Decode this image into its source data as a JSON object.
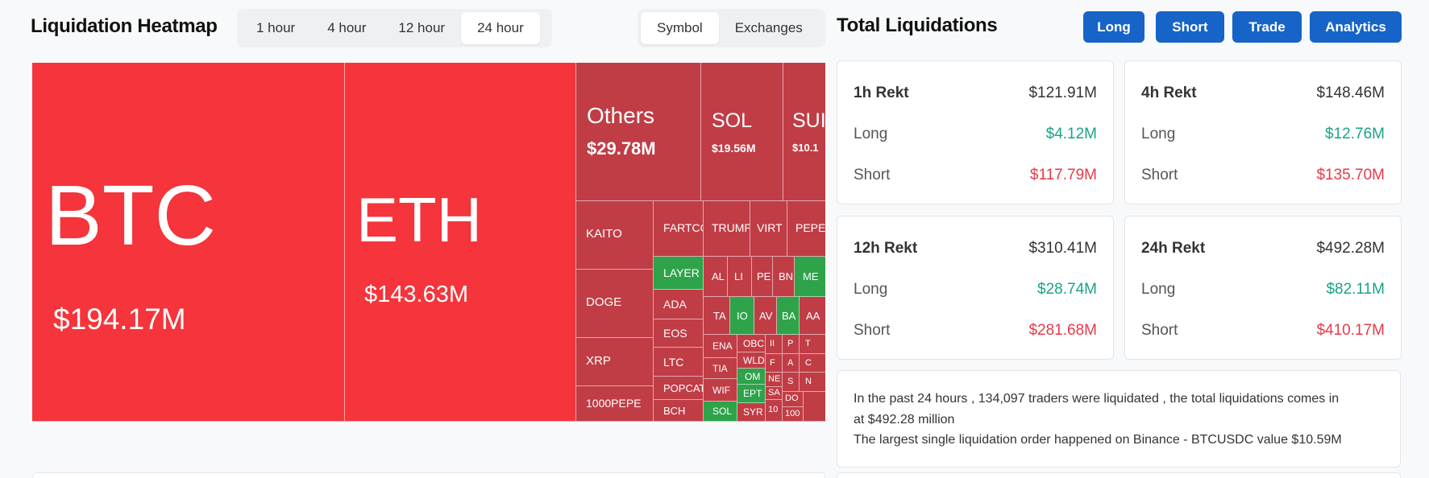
{
  "heatmap": {
    "title": "Liquidation Heatmap",
    "time_tabs": [
      "1 hour",
      "4 hour",
      "12 hour",
      "24 hour"
    ],
    "active_time": "24 hour",
    "view_tabs": [
      "Symbol",
      "Exchanges"
    ],
    "active_view": "Symbol",
    "cells": {
      "btc": {
        "symbol": "BTC",
        "value": "$194.17M"
      },
      "eth": {
        "symbol": "ETH",
        "value": "$143.63M"
      },
      "others": {
        "symbol": "Others",
        "value": "$29.78M"
      },
      "sol": {
        "symbol": "SOL",
        "value": "$19.56M"
      },
      "sui": {
        "symbol": "SUI",
        "value": "$10.1"
      },
      "kaito": "KAITO",
      "doge": "DOGE",
      "xrp": "XRP",
      "pepe1000": "1000PEPE",
      "fartco": "FARTCO",
      "trump": "TRUMP",
      "virt": "VIRT",
      "pepe": "PEPE",
      "layer": "LAYER",
      "ada": "ADA",
      "eos": "EOS",
      "ltc": "LTC",
      "popcat": "POPCAT",
      "bch": "BCH",
      "al": "AL",
      "li": "LI",
      "pe": "PE",
      "bn": "BN",
      "me": "ME",
      "ta": "TA",
      "io": "IO",
      "av": "AV",
      "ba": "BA",
      "aa": "AA",
      "ena": "ENA",
      "tia": "TIA",
      "wif": "WIF",
      "sol2": "SOL",
      "obc": "OBC",
      "wld": "WLD",
      "om": "OM",
      "ept": "EPT",
      "syr": "SYR",
      "i1": "II",
      "f1": "F",
      "ne": "NE",
      "sa": "SA",
      "n10": "10",
      "p1": "P",
      "a1": "A",
      "s1": "S",
      "do": "DO",
      "n100": "100",
      "t1": "T",
      "c1": "C",
      "n1": "N"
    }
  },
  "totals": {
    "title": "Total Liquidations",
    "buttons": [
      "Long",
      "Short",
      "Trade",
      "Analytics"
    ],
    "cards": [
      {
        "label": "1h Rekt",
        "total": "$121.91M",
        "long_label": "Long",
        "long": "$4.12M",
        "short_label": "Short",
        "short": "$117.79M"
      },
      {
        "label": "4h Rekt",
        "total": "$148.46M",
        "long_label": "Long",
        "long": "$12.76M",
        "short_label": "Short",
        "short": "$135.70M"
      },
      {
        "label": "12h Rekt",
        "total": "$310.41M",
        "long_label": "Long",
        "long": "$28.74M",
        "short_label": "Short",
        "short": "$281.68M"
      },
      {
        "label": "24h Rekt",
        "total": "$492.28M",
        "long_label": "Long",
        "long": "$82.11M",
        "short_label": "Short",
        "short": "$410.17M"
      }
    ],
    "summary_line1": "In the past 24 hours , 134,097 traders were liquidated , the total liquidations comes in",
    "summary_line2": "at $492.28 million",
    "summary_line3": "The largest single liquidation order happened on Binance - BTCUSDC value $10.59M"
  }
}
